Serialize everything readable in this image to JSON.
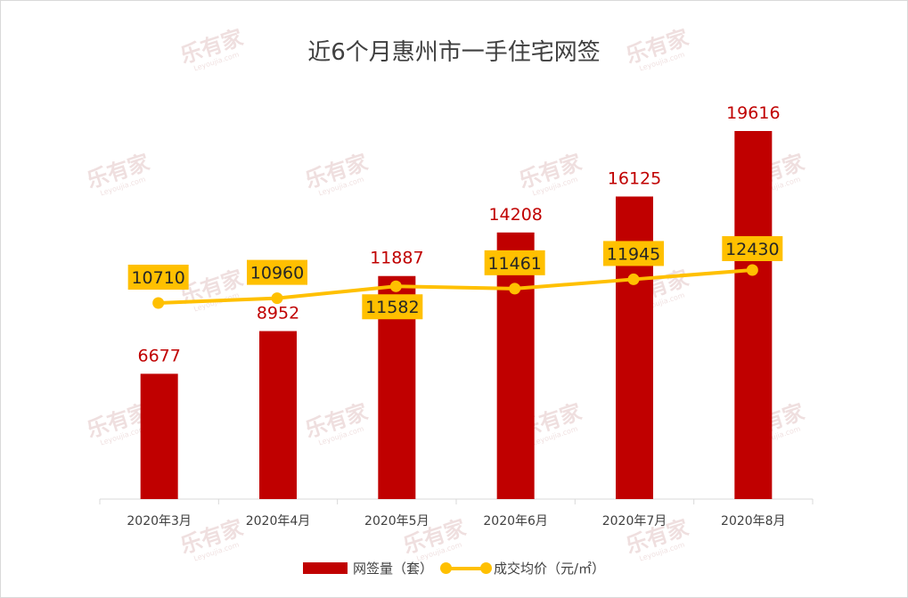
{
  "chart_data": {
    "type": "bar",
    "title": "近6个月惠州市一手住宅网签",
    "categories": [
      "2020年3月",
      "2020年4月",
      "2020年5月",
      "2020年6月",
      "2020年7月",
      "2020年8月"
    ],
    "series": [
      {
        "name": "网签量（套）",
        "type": "bar",
        "values": [
          6677,
          8952,
          11887,
          14208,
          16125,
          19616
        ],
        "color": "#c00000"
      },
      {
        "name": "成交均价（元/㎡）",
        "type": "line",
        "values": [
          10710,
          10960,
          11582,
          11461,
          11945,
          12430
        ],
        "color": "#ffc000"
      }
    ],
    "legend_position": "bottom",
    "grid": false
  },
  "watermark": {
    "text": "乐有家",
    "subtext": "Leyoujia.com"
  }
}
